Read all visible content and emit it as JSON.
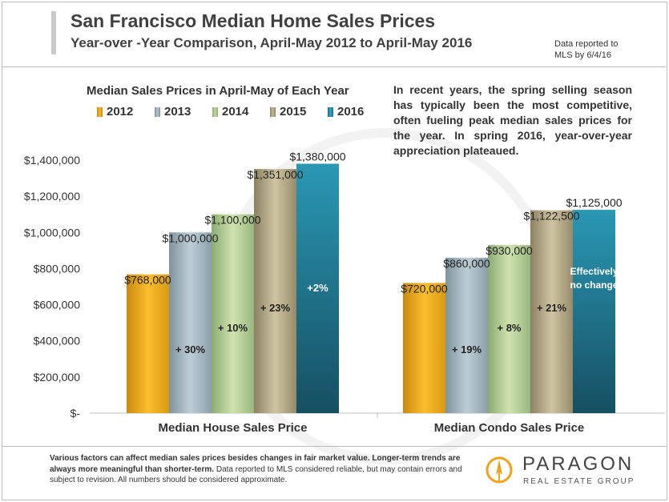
{
  "header": {
    "title": "San Francisco Median Home Sales Prices",
    "subtitle": "Year-over -Year Comparison,  April-May  2012 to April-May  2016",
    "note_line1": "Data reported to",
    "note_line2": "MLS by 6/4/16"
  },
  "commentary": "In recent years, the spring selling season has typically been the most competitive, often fueling peak median sales prices for the year.  In spring 2016, year-over-year appreciation plateaued.",
  "footer": {
    "bold_text": "Various factors can affect median sales prices besides changes in fair market value. Longer-term trends are always more meaningful than shorter-term.",
    "text": " Data reported to MLS considered reliable, but may contain errors and subject to revision. All numbers should be considered approximate."
  },
  "logo": {
    "name": "PARAGON",
    "tagline": "REAL ESTATE GROUP"
  },
  "colors": {
    "2012": "#f2a81d",
    "2013": "#a9bcc6",
    "2014": "#b6cf98",
    "2015": "#b9ae8c",
    "2016": "#2a8ea8"
  },
  "chart_data": {
    "type": "bar",
    "title": "Median Sales Prices in April-May of Each Year",
    "categories": [
      "Median House Sales Price",
      "Median Condo Sales Price"
    ],
    "series": [
      {
        "name": "2012",
        "values": [
          768000,
          720000
        ],
        "labels": [
          "$768,000",
          "$720,000"
        ]
      },
      {
        "name": "2013",
        "values": [
          1000000,
          860000
        ],
        "labels": [
          "$1,000,000",
          "$860,000"
        ]
      },
      {
        "name": "2014",
        "values": [
          1100000,
          930000
        ],
        "labels": [
          "$1,100,000",
          "$930,000"
        ]
      },
      {
        "name": "2015",
        "values": [
          1351000,
          1122500
        ],
        "labels": [
          "$1,351,000",
          "$1,122,500"
        ]
      },
      {
        "name": "2016",
        "values": [
          1380000,
          1125000
        ],
        "labels": [
          "$1,380,000",
          "$1,125,000"
        ]
      }
    ],
    "annotations": [
      [
        "",
        "+ 30%",
        "+ 10%",
        "+ 23%",
        "+2%"
      ],
      [
        "",
        "+ 19%",
        "+ 8%",
        "+ 21%",
        "Effectively no change"
      ]
    ],
    "ylim": [
      0,
      1400000
    ],
    "yticks": [
      0,
      200000,
      400000,
      600000,
      800000,
      1000000,
      1200000,
      1400000
    ],
    "ytick_labels": [
      "$-",
      "$200,000",
      "$400,000",
      "$600,000",
      "$800,000",
      "$1,000,000",
      "$1,200,000",
      "$1,400,000"
    ],
    "legend": "top-left",
    "grid": false
  }
}
